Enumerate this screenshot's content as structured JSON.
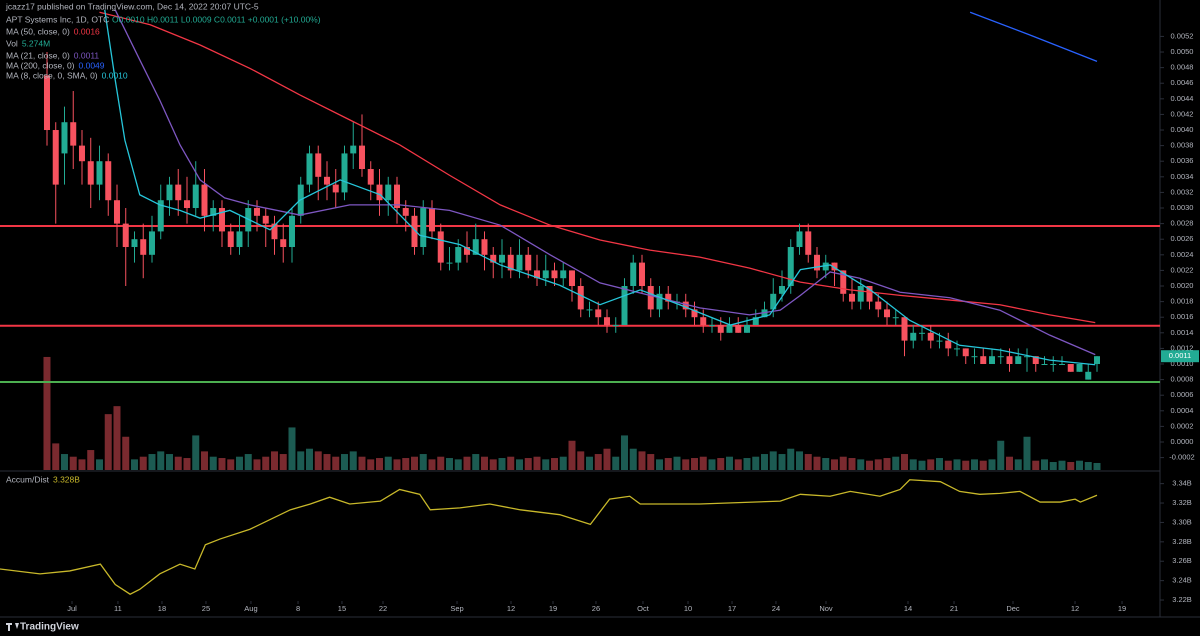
{
  "header": {
    "author_line": "jcazz17 published on TradingView.com, Dec 14, 2022 20:07 UTC-5",
    "symbol": "APT Systems Inc, 1D, OTC",
    "ohlc": "O0.0010 H0.0011 L0.0009 C0.0011 +0.0001 (+10.00%)",
    "last_price_label": "0.0011"
  },
  "footer": {
    "brand": "TradingView"
  },
  "chart_data": [
    {
      "type": "candlestick",
      "xlim": [
        -5.37,
        127.2
      ],
      "ylim": [
        -0.000359,
        0.005667
      ],
      "xticks": [
        {
          "value": 2.86,
          "label": "Jul"
        },
        {
          "value": 8.11,
          "label": "11"
        },
        {
          "value": 13.14,
          "label": "18"
        },
        {
          "value": 18.17,
          "label": "25"
        },
        {
          "value": 23.31,
          "label": "Aug"
        },
        {
          "value": 28.69,
          "label": "8"
        },
        {
          "value": 33.71,
          "label": "15"
        },
        {
          "value": 38.4,
          "label": "22"
        },
        {
          "value": 46.86,
          "label": "Sep"
        },
        {
          "value": 53.03,
          "label": "12"
        },
        {
          "value": 57.83,
          "label": "19"
        },
        {
          "value": 62.74,
          "label": "26"
        },
        {
          "value": 68.11,
          "label": "Oct"
        },
        {
          "value": 73.26,
          "label": "10"
        },
        {
          "value": 78.29,
          "label": "17"
        },
        {
          "value": 83.31,
          "label": "24"
        },
        {
          "value": 89.03,
          "label": "Nov"
        },
        {
          "value": 98.4,
          "label": "14"
        },
        {
          "value": 103.66,
          "label": "21"
        },
        {
          "value": 110.4,
          "label": "Dec"
        },
        {
          "value": 117.49,
          "label": "12"
        },
        {
          "value": 122.86,
          "label": "19"
        }
      ],
      "yticks": [
        0.0052,
        {
          "value": 0.005,
          "label": "0.0050"
        },
        0.0048,
        0.0046,
        0.0044,
        0.0042,
        {
          "value": 0.004,
          "label": "0.0040"
        },
        0.0038,
        0.0036,
        0.0034,
        0.0032,
        {
          "value": 0.003,
          "label": "0.0030"
        },
        0.0028,
        0.0026,
        0.0024,
        0.0022,
        {
          "value": 0.002,
          "label": "0.0020"
        },
        0.0018,
        0.0016,
        0.0014,
        0.0012,
        {
          "value": 0.001,
          "label": "0.0010"
        },
        0.0008,
        0.0006,
        0.0004,
        0.0002,
        {
          "value": 0,
          "label": "0.0000"
        },
        -0.0002
      ],
      "grid": false,
      "up_color": "#22ab94",
      "down_color": "#f7525f",
      "open": [
        0.0047,
        0.004,
        0.0037,
        0.0041,
        0.0038,
        0.0036,
        0.0033,
        0.0036,
        0.0031,
        0.0028,
        0.0025,
        0.0026,
        0.0024,
        0.0027,
        0.0031,
        0.0033,
        0.0031,
        0.003,
        0.0033,
        0.0029,
        0.003,
        0.0027,
        0.0025,
        0.0027,
        0.003,
        0.0029,
        0.0028,
        0.0026,
        0.0025,
        0.0029,
        0.0033,
        0.0037,
        0.0034,
        0.0033,
        0.0032,
        0.0037,
        0.0038,
        0.0035,
        0.0033,
        0.0031,
        0.0033,
        0.003,
        0.0029,
        0.0025,
        0.003,
        0.0027,
        0.0023,
        0.0023,
        0.0025,
        0.0024,
        0.0026,
        0.0024,
        0.0023,
        0.0024,
        0.0022,
        0.0024,
        0.0022,
        0.0021,
        0.0022,
        0.0021,
        0.0022,
        0.002,
        0.0017,
        0.0017,
        0.0016,
        0.0015,
        0.0015,
        0.002,
        0.0023,
        0.002,
        0.0017,
        0.0019,
        0.0018,
        0.0018,
        0.0017,
        0.0016,
        0.0015,
        0.0015,
        0.0014,
        0.0015,
        0.0014,
        0.0015,
        0.0016,
        0.0017,
        0.0019,
        0.002,
        0.0025,
        0.0027,
        0.0024,
        0.0022,
        0.0023,
        0.0022,
        0.0019,
        0.0018,
        0.002,
        0.0018,
        0.0017,
        0.0016,
        0.0016,
        0.0013,
        0.0014,
        0.0014,
        0.0013,
        0.0013,
        0.0012,
        0.0012,
        0.0011,
        0.0011,
        0.001,
        0.0011,
        0.0011,
        0.001,
        0.0011,
        0.0011,
        0.001,
        0.001,
        0.001,
        0.001,
        0.0009,
        0.0008,
        0.001
      ],
      "high": [
        0.005,
        0.0041,
        0.0043,
        0.0045,
        0.004,
        0.0039,
        0.0038,
        0.0037,
        0.0033,
        0.003,
        0.0027,
        0.0028,
        0.0029,
        0.0033,
        0.0034,
        0.0035,
        0.0034,
        0.0036,
        0.0035,
        0.0031,
        0.0031,
        0.0028,
        0.0029,
        0.0031,
        0.0031,
        0.003,
        0.0029,
        0.0028,
        0.003,
        0.0034,
        0.0038,
        0.0038,
        0.0036,
        0.0035,
        0.0038,
        0.0041,
        0.0042,
        0.0036,
        0.0035,
        0.0034,
        0.0034,
        0.0031,
        0.003,
        0.0031,
        0.0031,
        0.0028,
        0.0025,
        0.0026,
        0.0027,
        0.0028,
        0.0027,
        0.0025,
        0.0026,
        0.0025,
        0.0026,
        0.0025,
        0.0024,
        0.0024,
        0.0023,
        0.0023,
        0.0022,
        0.0021,
        0.0018,
        0.0018,
        0.0017,
        0.0016,
        0.0021,
        0.0024,
        0.0024,
        0.0021,
        0.002,
        0.002,
        0.0019,
        0.0019,
        0.0018,
        0.0017,
        0.0016,
        0.0016,
        0.0016,
        0.0016,
        0.0016,
        0.0017,
        0.0018,
        0.0021,
        0.0022,
        0.0026,
        0.0028,
        0.0028,
        0.0025,
        0.0024,
        0.0023,
        0.0022,
        0.0021,
        0.0021,
        0.002,
        0.0019,
        0.0018,
        0.0017,
        0.0016,
        0.0015,
        0.0015,
        0.0015,
        0.0014,
        0.0014,
        0.0013,
        0.0012,
        0.0012,
        0.0012,
        0.0012,
        0.0012,
        0.0012,
        0.0012,
        0.0012,
        0.0011,
        0.0011,
        0.0011,
        0.0011,
        0.001,
        0.001,
        0.001,
        0.0011
      ],
      "low": [
        0.0038,
        0.0028,
        0.0033,
        0.0035,
        0.0033,
        0.003,
        0.0031,
        0.0029,
        0.0025,
        0.002,
        0.0023,
        0.0021,
        0.0023,
        0.0026,
        0.0029,
        0.0029,
        0.0028,
        0.0029,
        0.0027,
        0.0027,
        0.0025,
        0.0024,
        0.0024,
        0.0025,
        0.0027,
        0.0025,
        0.0024,
        0.0023,
        0.0023,
        0.0028,
        0.0032,
        0.0031,
        0.0031,
        0.003,
        0.0031,
        0.0035,
        0.0034,
        0.0031,
        0.0029,
        0.0029,
        0.0028,
        0.0027,
        0.0024,
        0.0024,
        0.0026,
        0.0022,
        0.0022,
        0.0022,
        0.0023,
        0.0024,
        0.0022,
        0.0021,
        0.0021,
        0.0021,
        0.0021,
        0.0021,
        0.002,
        0.002,
        0.002,
        0.002,
        0.0018,
        0.0016,
        0.0016,
        0.0015,
        0.0014,
        0.0014,
        0.0015,
        0.0019,
        0.0019,
        0.0016,
        0.0016,
        0.0017,
        0.0017,
        0.0016,
        0.0015,
        0.0014,
        0.0014,
        0.0013,
        0.0014,
        0.0014,
        0.0014,
        0.0015,
        0.0016,
        0.0016,
        0.0018,
        0.0019,
        0.0024,
        0.0023,
        0.0021,
        0.0021,
        0.002,
        0.0018,
        0.0017,
        0.0017,
        0.0017,
        0.0016,
        0.0015,
        0.0015,
        0.0011,
        0.0012,
        0.0013,
        0.0012,
        0.0012,
        0.0011,
        0.0011,
        0.001,
        0.001,
        0.001,
        0.001,
        0.001,
        0.0009,
        0.001,
        0.0009,
        0.0009,
        0.001,
        0.0009,
        0.001,
        0.0009,
        0.0009,
        0.0008,
        0.0009
      ],
      "close": [
        0.004,
        0.0033,
        0.0041,
        0.0038,
        0.0036,
        0.0033,
        0.0036,
        0.0031,
        0.0028,
        0.0025,
        0.0026,
        0.0024,
        0.0027,
        0.0031,
        0.0033,
        0.0031,
        0.003,
        0.0033,
        0.0029,
        0.003,
        0.0027,
        0.0025,
        0.0027,
        0.003,
        0.0029,
        0.0028,
        0.0026,
        0.0025,
        0.0029,
        0.0033,
        0.0037,
        0.0034,
        0.0033,
        0.0032,
        0.0037,
        0.0038,
        0.0035,
        0.0033,
        0.0031,
        0.0033,
        0.003,
        0.0029,
        0.0025,
        0.003,
        0.0027,
        0.0023,
        0.0023,
        0.0025,
        0.0024,
        0.0026,
        0.0024,
        0.0023,
        0.0024,
        0.0022,
        0.0024,
        0.0022,
        0.0021,
        0.0022,
        0.0021,
        0.0022,
        0.002,
        0.0017,
        0.0017,
        0.0016,
        0.0015,
        0.0015,
        0.002,
        0.0023,
        0.002,
        0.0017,
        0.0019,
        0.0018,
        0.0018,
        0.0017,
        0.0016,
        0.0015,
        0.0015,
        0.0014,
        0.0015,
        0.0014,
        0.0015,
        0.0016,
        0.0017,
        0.0019,
        0.002,
        0.0025,
        0.0027,
        0.0024,
        0.0022,
        0.0023,
        0.0022,
        0.0019,
        0.0018,
        0.002,
        0.0018,
        0.0017,
        0.0016,
        0.0016,
        0.0013,
        0.0014,
        0.0014,
        0.0013,
        0.0013,
        0.0012,
        0.0012,
        0.0011,
        0.0011,
        0.001,
        0.0011,
        0.0011,
        0.001,
        0.0011,
        0.0011,
        0.001,
        0.001,
        0.001,
        0.001,
        0.0009,
        0.001,
        0.0009,
        0.0011
      ],
      "volume": {
        "name": "Vol",
        "legend_value": "5.274M",
        "color": "#22ab94",
        "up_color": "#1c5b52",
        "down_color": "#7a2a2f",
        "values": [
          85,
          20,
          12,
          10,
          8,
          15,
          8,
          42,
          48,
          25,
          8,
          10,
          12,
          14,
          12,
          10,
          9,
          26,
          14,
          10,
          9,
          8,
          10,
          12,
          8,
          10,
          14,
          12,
          32,
          14,
          16,
          14,
          12,
          10,
          12,
          14,
          10,
          8,
          9,
          10,
          8,
          9,
          10,
          12,
          8,
          10,
          9,
          8,
          10,
          12,
          10,
          8,
          9,
          10,
          8,
          9,
          10,
          8,
          9,
          10,
          22,
          14,
          10,
          12,
          16,
          10,
          26,
          16,
          14,
          12,
          8,
          9,
          10,
          8,
          9,
          10,
          8,
          9,
          10,
          8,
          9,
          10,
          12,
          14,
          12,
          16,
          14,
          12,
          10,
          9,
          8,
          10,
          9,
          8,
          7,
          8,
          9,
          10,
          12,
          8,
          7,
          8,
          9,
          7,
          8,
          7,
          8,
          7,
          8,
          22,
          10,
          8,
          25,
          7,
          8,
          6,
          7,
          6,
          7,
          6,
          5.274
        ]
      },
      "series": [
        {
          "name": "MA (50, close, 0)",
          "legend_value": "0.0016",
          "color": "#f23645",
          "x": [
            6,
            11.8,
            17.5,
            23.2,
            28.9,
            34.6,
            40.3,
            46,
            51.8,
            57.5,
            63.2,
            68.9,
            74.6,
            80.3,
            86.1,
            91.8,
            97.5,
            103.2,
            108.9,
            114.6,
            119.8
          ],
          "values": [
            0.00551,
            0.00535,
            0.00509,
            0.00479,
            0.00445,
            0.00413,
            0.00381,
            0.00342,
            0.00304,
            0.00278,
            0.00259,
            0.00246,
            0.00237,
            0.00223,
            0.00205,
            0.00195,
            0.00188,
            0.00182,
            0.00176,
            0.00163,
            0.00153
          ]
        },
        {
          "name": "MA (21, close, 0)",
          "legend_value": "0.0011",
          "color": "#7e57c2",
          "x": [
            7.8,
            10.6,
            12.9,
            15.2,
            17.5,
            20.3,
            23.2,
            28.9,
            34.6,
            40.3,
            46,
            51.8,
            57.5,
            63.2,
            68.9,
            74.6,
            80.3,
            83.8,
            86.1,
            89.5,
            92.9,
            97.5,
            103.2,
            108.9,
            114.6,
            119.8
          ],
          "values": [
            0.00554,
            0.0049,
            0.00438,
            0.00381,
            0.00336,
            0.00313,
            0.00304,
            0.00291,
            0.00304,
            0.00304,
            0.00297,
            0.00278,
            0.0024,
            0.00204,
            0.00188,
            0.00172,
            0.00163,
            0.00169,
            0.00188,
            0.00218,
            0.0021,
            0.00192,
            0.00185,
            0.00169,
            0.00137,
            0.00112
          ]
        },
        {
          "name": "MA (200, close, 0)",
          "legend_value": "0.0049",
          "color": "#2962ff",
          "x": [
            105.5,
            112.3,
            120
          ],
          "values": [
            0.00551,
            0.00522,
            0.00488
          ]
        },
        {
          "name": "MA (8, close, 0, SMA, 0)",
          "legend_value": "0.0010",
          "color": "#26c6da",
          "x": [
            6.6,
            7.8,
            8.9,
            10.6,
            12.9,
            15.2,
            17.5,
            20.9,
            25.5,
            28.9,
            33.5,
            38.1,
            42.6,
            47.2,
            51.8,
            58.6,
            63.2,
            67.8,
            72.3,
            78.1,
            82.6,
            86.1,
            89.5,
            94.1,
            98.6,
            104.3,
            108.9,
            114.6,
            119.8
          ],
          "values": [
            0.00554,
            0.00464,
            0.00387,
            0.00317,
            0.00304,
            0.00297,
            0.00287,
            0.00297,
            0.00272,
            0.0031,
            0.00336,
            0.00317,
            0.00265,
            0.00253,
            0.00227,
            0.00201,
            0.00176,
            0.00195,
            0.00176,
            0.0015,
            0.00163,
            0.00221,
            0.00227,
            0.00195,
            0.00156,
            0.00124,
            0.00118,
            0.00105,
            0.00099
          ]
        }
      ],
      "levels": [
        {
          "value": 0.00277,
          "color": "#f23645"
        },
        {
          "value": 0.00149,
          "color": "#f23645"
        },
        {
          "value": 0.00077,
          "color": "#4caf50"
        }
      ]
    },
    {
      "type": "line",
      "xlim": [
        -5.37,
        127.2
      ],
      "ylim": [
        3.219,
        3.352
      ],
      "yticks": [
        {
          "value": 3.34,
          "label": "3.34B"
        },
        {
          "value": 3.32,
          "label": "3.32B"
        },
        {
          "value": 3.3,
          "label": "3.30B"
        },
        {
          "value": 3.28,
          "label": "3.28B"
        },
        {
          "value": 3.26,
          "label": "3.26B"
        },
        {
          "value": 3.24,
          "label": "3.24B"
        },
        {
          "value": 3.22,
          "label": "3.22B"
        }
      ],
      "series": [
        {
          "name": "Accum/Dist",
          "legend_value": "3.328B",
          "color": "#c8b82a",
          "x": [
            -5.4,
            -0.8,
            2.6,
            6.1,
            7.8,
            9.5,
            10.6,
            12.9,
            15.2,
            16.9,
            18.1,
            19.8,
            23.2,
            27.8,
            30.1,
            32.3,
            34.6,
            38.1,
            40.3,
            42.6,
            43.8,
            47.2,
            50.6,
            54.1,
            58.6,
            62.1,
            64.3,
            66.6,
            67.8,
            74.6,
            83.8,
            86.1,
            89.5,
            91.8,
            95.2,
            97.5,
            98.6,
            102.1,
            104.3,
            106.6,
            108.9,
            111.2,
            113.5,
            115.8,
            117.5,
            118.1,
            120
          ],
          "values": [
            3.252,
            3.247,
            3.25,
            3.257,
            3.236,
            3.226,
            3.231,
            3.247,
            3.257,
            3.252,
            3.277,
            3.283,
            3.293,
            3.313,
            3.319,
            3.326,
            3.319,
            3.322,
            3.334,
            3.329,
            3.313,
            3.315,
            3.319,
            3.313,
            3.308,
            3.298,
            3.324,
            3.327,
            3.319,
            3.319,
            3.322,
            3.329,
            3.327,
            3.332,
            3.327,
            3.334,
            3.344,
            3.342,
            3.332,
            3.329,
            3.33,
            3.332,
            3.321,
            3.321,
            3.324,
            3.321,
            3.328
          ]
        }
      ]
    }
  ]
}
